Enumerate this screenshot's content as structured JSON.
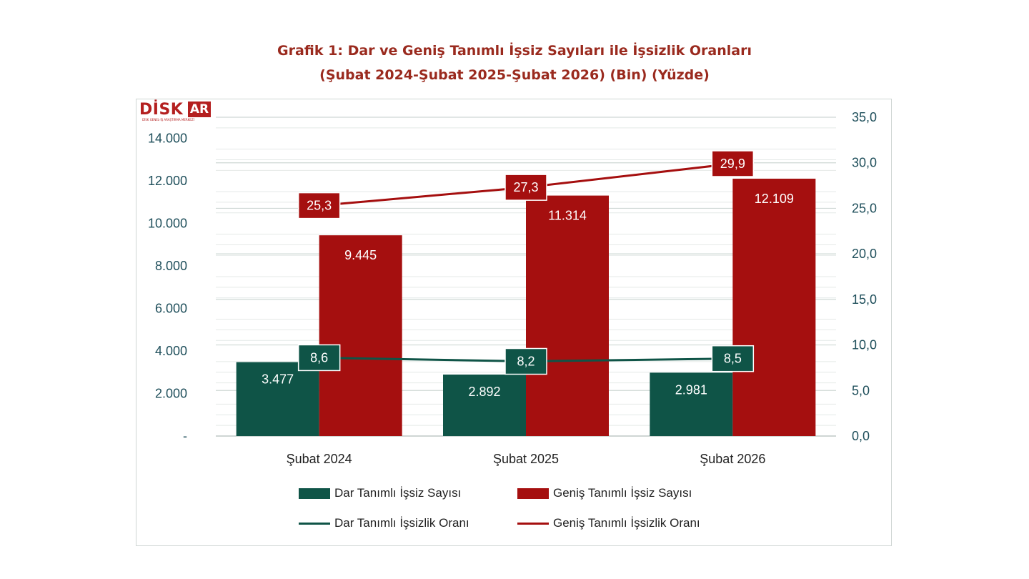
{
  "title_line1": "Grafik 1: Dar ve Geniş Tanımlı İşsiz Sayıları ile İşsizlik Oranları",
  "title_line2": "(Şubat 2024-Şubat 2025-Şubat 2026) (Bin) (Yüzde)",
  "logo": {
    "text": "DİSK",
    "box_text": "AR",
    "tagline": "DİSK GENEL-İŞ ARAŞTIRMA MERKEZİ"
  },
  "colors": {
    "dark_green": "#0f5447",
    "dark_red": "#a50f0f",
    "title": "#9a2a1e",
    "axis_text": "#1f4f5b"
  },
  "chart_data": {
    "type": "bar",
    "categories": [
      "Şubat 2024",
      "Şubat 2025",
      "Şubat 2026"
    ],
    "series": [
      {
        "name": "Dar Tanımlı İşsiz Sayısı",
        "kind": "bar",
        "axis": "left",
        "values": [
          3477,
          2892,
          2981
        ],
        "labels": [
          "3.477",
          "2.892",
          "2.981"
        ],
        "color": "#0f5447"
      },
      {
        "name": "Geniş Tanımlı İşsiz Sayısı",
        "kind": "bar",
        "axis": "left",
        "values": [
          9445,
          11314,
          12109
        ],
        "labels": [
          "9.445",
          "11.314",
          "12.109"
        ],
        "color": "#a50f0f"
      },
      {
        "name": "Dar Tanımlı İşsizlik Oranı",
        "kind": "line",
        "axis": "right",
        "values": [
          8.6,
          8.2,
          8.5
        ],
        "labels": [
          "8,6",
          "8,2",
          "8,5"
        ],
        "color": "#0f5447"
      },
      {
        "name": "Geniş Tanımlı İşsizlik Oranı",
        "kind": "line",
        "axis": "right",
        "values": [
          25.3,
          27.3,
          29.9
        ],
        "labels": [
          "25,3",
          "27,3",
          "29,9"
        ],
        "color": "#a50f0f"
      }
    ],
    "y_left": {
      "ylim": [
        0,
        15000
      ],
      "ticks": [
        0,
        2000,
        4000,
        6000,
        8000,
        10000,
        12000,
        14000
      ],
      "tick_labels": [
        "-",
        "2.000",
        "4.000",
        "6.000",
        "8.000",
        "10.000",
        "12.000",
        "14.000"
      ]
    },
    "y_right": {
      "ylim": [
        0,
        35
      ],
      "ticks": [
        0,
        5,
        10,
        15,
        20,
        25,
        30,
        35
      ],
      "tick_labels": [
        "0,0",
        "5,0",
        "10,0",
        "15,0",
        "20,0",
        "25,0",
        "30,0",
        "35,0"
      ]
    },
    "grid": true,
    "legend_position": "bottom"
  }
}
